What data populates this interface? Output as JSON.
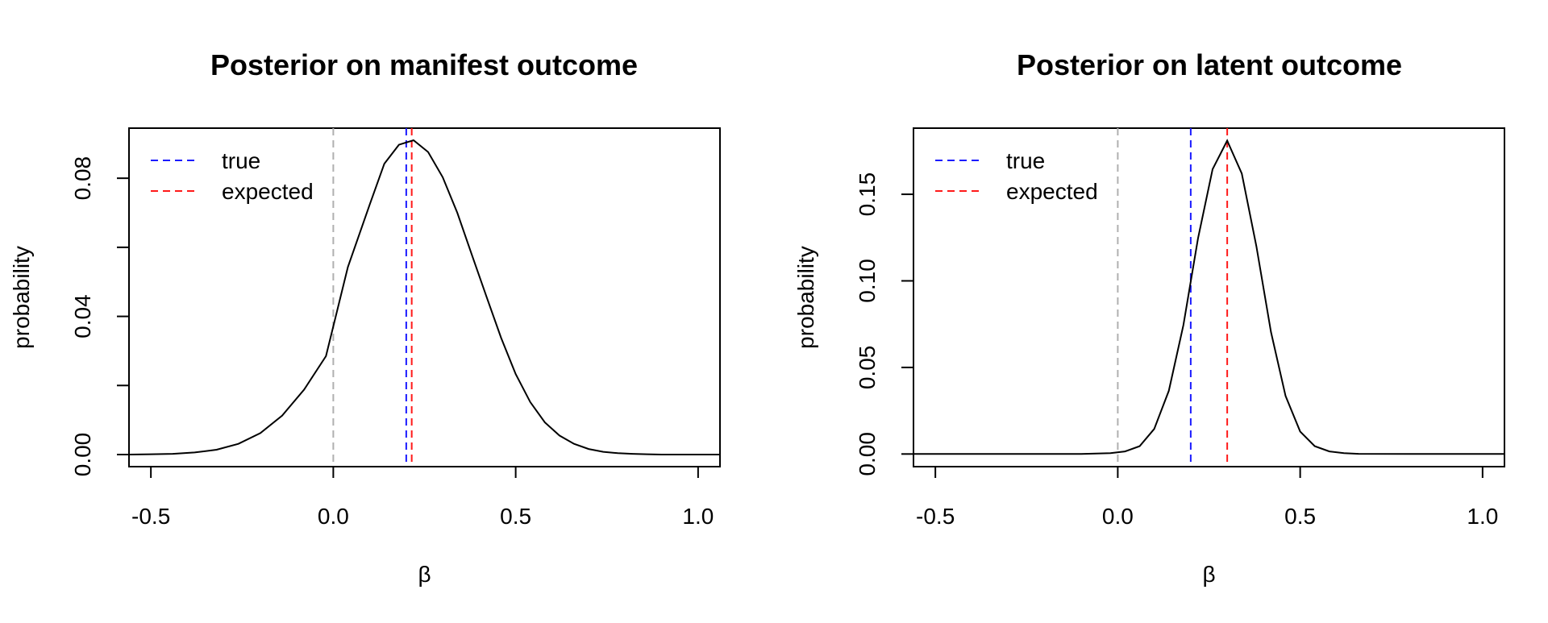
{
  "chart_data": [
    {
      "type": "line",
      "title": "Posterior on manifest outcome",
      "xlabel": "β",
      "ylabel": "probability",
      "xlim": [
        -0.56,
        1.06
      ],
      "ylim": [
        -0.0035,
        0.0945
      ],
      "xticks": [
        -0.5,
        0.0,
        0.5,
        1.0
      ],
      "xtick_labels": [
        "-0.5",
        "0.0",
        "0.5",
        "1.0"
      ],
      "yticks": [
        0.0,
        0.02,
        0.04,
        0.06,
        0.08
      ],
      "ytick_labels": [
        "0.00",
        "",
        "0.04",
        "",
        "0.08"
      ],
      "grid": false,
      "legend_position": "top-left",
      "series": [
        {
          "color": "#000000",
          "x": [
            -0.56,
            -0.5,
            -0.44,
            -0.38,
            -0.32,
            -0.26,
            -0.2,
            -0.14,
            -0.08,
            -0.02,
            0.04,
            0.1,
            0.14,
            0.18,
            0.22,
            0.26,
            0.3,
            0.34,
            0.38,
            0.42,
            0.46,
            0.5,
            0.54,
            0.58,
            0.62,
            0.66,
            0.7,
            0.74,
            0.78,
            0.82,
            0.86,
            0.9,
            0.94,
            0.98,
            1.02,
            1.06
          ],
          "y": [
            0.0,
            0.0001,
            0.0002,
            0.0006,
            0.0014,
            0.0031,
            0.0062,
            0.0113,
            0.0188,
            0.0285,
            0.0543,
            0.0724,
            0.0842,
            0.0897,
            0.091,
            0.0876,
            0.0803,
            0.07,
            0.0578,
            0.0457,
            0.0338,
            0.0233,
            0.0152,
            0.0093,
            0.0055,
            0.0031,
            0.0016,
            0.0008,
            0.0004,
            0.0002,
            0.0001,
            0.0,
            0.0,
            0.0,
            0.0,
            0.0
          ]
        }
      ],
      "vlines": [
        {
          "x": 0.0,
          "color": "#b0b0b0",
          "dashed": true
        },
        {
          "x": 0.2,
          "color": "#1a1aff",
          "dashed": true,
          "legend": "true"
        },
        {
          "x": 0.215,
          "color": "#ff1a1a",
          "dashed": true,
          "legend": "expected"
        }
      ],
      "legend": [
        {
          "label": "true",
          "color": "#1a1aff"
        },
        {
          "label": "expected",
          "color": "#ff1a1a"
        }
      ]
    },
    {
      "type": "line",
      "title": "Posterior on latent outcome",
      "xlabel": "β",
      "ylabel": "probability",
      "xlim": [
        -0.56,
        1.06
      ],
      "ylim": [
        -0.0073,
        0.1882
      ],
      "xticks": [
        -0.5,
        0.0,
        0.5,
        1.0
      ],
      "xtick_labels": [
        "-0.5",
        "0.0",
        "0.5",
        "1.0"
      ],
      "yticks": [
        0.0,
        0.05,
        0.1,
        0.15
      ],
      "ytick_labels": [
        "0.00",
        "0.05",
        "0.10",
        "0.15"
      ],
      "grid": false,
      "legend_position": "top-left",
      "series": [
        {
          "color": "#000000",
          "x": [
            -0.56,
            -0.4,
            -0.2,
            -0.1,
            -0.02,
            0.02,
            0.06,
            0.1,
            0.14,
            0.18,
            0.22,
            0.26,
            0.3,
            0.34,
            0.38,
            0.42,
            0.46,
            0.5,
            0.54,
            0.58,
            0.62,
            0.66,
            0.8,
            1.06
          ],
          "y": [
            0.0,
            0.0,
            0.0,
            0.0,
            0.0005,
            0.0015,
            0.0045,
            0.0145,
            0.0365,
            0.0745,
            0.1245,
            0.1645,
            0.181,
            0.162,
            0.12,
            0.0705,
            0.0335,
            0.013,
            0.0045,
            0.0015,
            0.0005,
            0.0001,
            0.0,
            0.0
          ]
        }
      ],
      "vlines": [
        {
          "x": 0.0,
          "color": "#b0b0b0",
          "dashed": true
        },
        {
          "x": 0.2,
          "color": "#1a1aff",
          "dashed": true,
          "legend": "true"
        },
        {
          "x": 0.3,
          "color": "#ff1a1a",
          "dashed": true,
          "legend": "expected"
        }
      ],
      "legend": [
        {
          "label": "true",
          "color": "#1a1aff"
        },
        {
          "label": "expected",
          "color": "#ff1a1a"
        }
      ]
    }
  ]
}
